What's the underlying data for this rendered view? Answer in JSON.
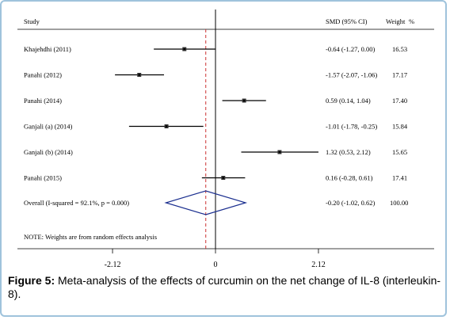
{
  "chart_data": {
    "type": "forest",
    "headers": {
      "study": "Study",
      "smd": "SMD (95% CI)",
      "weight": "Weight",
      "weight_unit": "%"
    },
    "studies": [
      {
        "label": "Khajehdhi (2011)",
        "smd": -0.64,
        "lo": -1.27,
        "hi": 0.0,
        "ci_text": "-0.64 (-1.27, 0.00)",
        "weight": "16.53"
      },
      {
        "label": "Panahi (2012)",
        "smd": -1.57,
        "lo": -2.07,
        "hi": -1.06,
        "ci_text": "-1.57 (-2.07, -1.06)",
        "weight": "17.17"
      },
      {
        "label": "Panahi (2014)",
        "smd": 0.59,
        "lo": 0.14,
        "hi": 1.04,
        "ci_text": "0.59 (0.14, 1.04)",
        "weight": "17.40"
      },
      {
        "label": "Ganjali (a) (2014)",
        "smd": -1.01,
        "lo": -1.78,
        "hi": -0.25,
        "ci_text": "-1.01 (-1.78, -0.25)",
        "weight": "15.84"
      },
      {
        "label": "Ganjali (b) (2014)",
        "smd": 1.32,
        "lo": 0.53,
        "hi": 2.12,
        "ci_text": "1.32 (0.53, 2.12)",
        "weight": "15.65"
      },
      {
        "label": "Panahi (2015)",
        "smd": 0.16,
        "lo": -0.28,
        "hi": 0.61,
        "ci_text": "0.16 (-0.28, 0.61)",
        "weight": "17.41"
      }
    ],
    "overall": {
      "label": "Overall  (I-squared = 92.1%, p = 0.000)",
      "smd": -0.2,
      "lo": -1.02,
      "hi": 0.62,
      "ci_text": "-0.20 (-1.02, 0.62)",
      "weight": "100.00"
    },
    "note": "NOTE: Weights are from random effects analysis",
    "x_ticks": [
      {
        "value": -2.12,
        "label": "-2.12"
      },
      {
        "value": 0,
        "label": "0"
      },
      {
        "value": 2.12,
        "label": "2.12"
      }
    ],
    "xlim": [
      -2.12,
      2.12
    ],
    "colors": {
      "line": "#000000",
      "dashed": "#cc3333",
      "diamond": "#1a2e8f",
      "frame": "#9fc3dc"
    }
  },
  "caption": {
    "bold": "Figure 5:",
    "text": " Meta-analysis of the effects of curcumin on the net change of IL-8 (interleukin-8)."
  }
}
